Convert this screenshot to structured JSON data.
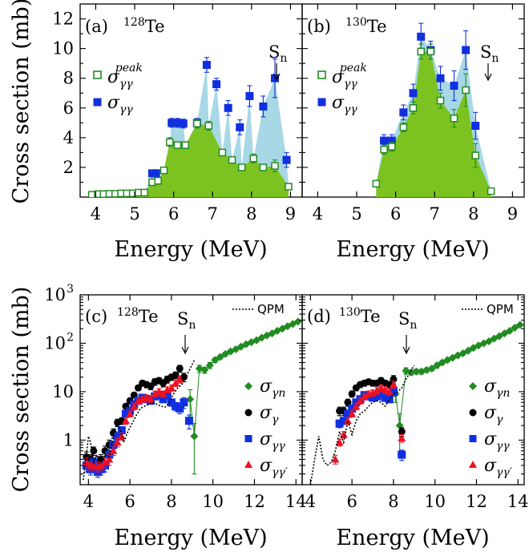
{
  "colors": {
    "blue": "#1030e0",
    "green": "#7cc322",
    "light_blue": "#a8d8e6",
    "dark_green": "#228b22",
    "black": "#000000",
    "red": "#ee1122"
  },
  "labels": {
    "ylabel_top": "Cross section (mb)",
    "xlabel_top": "Energy (MeV)",
    "ylabel_bottom": "Cross section (mb)",
    "xlabel_bottom": "Energy (MeV)",
    "panel_a": "(a)",
    "panel_b": "(b)",
    "panel_c": "(c)",
    "panel_d": "(d)",
    "iso_128_mass": "128",
    "iso_130_mass": "130",
    "iso_el": "Te",
    "sn": "S",
    "sn_sub": "n",
    "qpm": "QPM",
    "sigma": "σ",
    "sub_gg": "γγ",
    "sup_peak": "peak",
    "sub_gn": "γn",
    "sub_g": "γ",
    "sub_ggp": "γγ′"
  },
  "chart_data": [
    {
      "type": "scatter",
      "panel": "(a) 128Te",
      "xlabel": "Energy (MeV)",
      "ylabel": "Cross section (mb)",
      "xlim": [
        3.6,
        9.3
      ],
      "ylim": [
        0,
        13
      ],
      "xticks": [
        4,
        5,
        6,
        7,
        8,
        9
      ],
      "yticks": [
        2,
        4,
        6,
        8,
        10,
        12
      ],
      "sn": 8.78,
      "series": [
        {
          "name": "σγγ",
          "marker": "filled-square",
          "color": "blue",
          "x": [
            5.45,
            5.55,
            5.95,
            6.1,
            6.25,
            6.6,
            6.85,
            7.1,
            7.4,
            7.7,
            7.95,
            8.3,
            8.6,
            8.9
          ],
          "y": [
            1.6,
            1.6,
            5.0,
            5.0,
            4.95,
            5.0,
            8.9,
            7.6,
            6.0,
            4.7,
            6.8,
            6.1,
            8.0,
            2.5
          ],
          "err": [
            0.2,
            0.2,
            0.3,
            0.3,
            0.3,
            0.3,
            0.5,
            0.4,
            0.5,
            0.5,
            0.7,
            0.7,
            1.3,
            0.5
          ]
        },
        {
          "name": "σγγ peak",
          "marker": "open-square",
          "color": "dark_green",
          "x": [
            3.9,
            4.05,
            4.2,
            4.35,
            4.5,
            4.65,
            4.8,
            4.95,
            5.1,
            5.25,
            5.45,
            5.6,
            5.75,
            5.9,
            6.1,
            6.3,
            6.6,
            6.9,
            7.25,
            7.5,
            7.75,
            8.05,
            8.3,
            8.6,
            8.95
          ],
          "y": [
            0.15,
            0.2,
            0.2,
            0.22,
            0.22,
            0.25,
            0.25,
            0.25,
            0.3,
            0.3,
            1.0,
            1.1,
            1.8,
            3.7,
            3.5,
            3.5,
            4.95,
            4.8,
            3.0,
            2.5,
            2.0,
            2.6,
            2.0,
            2.1,
            0.7
          ],
          "err": [
            0.05,
            0.05,
            0.05,
            0.05,
            0.05,
            0.05,
            0.05,
            0.05,
            0.05,
            0.05,
            0.2,
            0.2,
            0.2,
            0.3,
            0.2,
            0.2,
            0.3,
            0.3,
            0.2,
            0.2,
            0.2,
            0.3,
            0.2,
            0.4,
            0.1
          ]
        }
      ]
    },
    {
      "type": "scatter",
      "panel": "(b) 130Te",
      "xlabel": "Energy (MeV)",
      "xlim": [
        3.6,
        9.3
      ],
      "ylim": [
        0,
        13
      ],
      "xticks": [
        4,
        5,
        6,
        7,
        8,
        9
      ],
      "sn": 8.45,
      "series": [
        {
          "name": "σγγ",
          "marker": "filled-square",
          "color": "blue",
          "x": [
            5.7,
            5.9,
            6.2,
            6.45,
            6.65,
            6.9,
            7.15,
            7.5,
            7.8,
            8.05
          ],
          "y": [
            3.8,
            3.8,
            5.7,
            7.0,
            10.8,
            9.9,
            8.0,
            7.5,
            9.9,
            4.8
          ],
          "err": [
            0.4,
            0.4,
            0.5,
            0.6,
            0.9,
            0.6,
            0.8,
            1.0,
            1.3,
            0.9
          ]
        },
        {
          "name": "σγγ peak",
          "marker": "open-square",
          "color": "dark_green",
          "x": [
            5.5,
            5.7,
            5.9,
            6.2,
            6.45,
            6.65,
            6.9,
            7.15,
            7.5,
            7.8,
            8.05,
            8.45
          ],
          "y": [
            0.9,
            3.2,
            3.4,
            4.7,
            6.0,
            9.8,
            9.8,
            6.5,
            5.3,
            7.2,
            2.8,
            0.4
          ],
          "err": [
            0.1,
            0.3,
            0.3,
            0.3,
            0.4,
            0.5,
            0.5,
            0.5,
            0.6,
            1.1,
            0.8,
            0.1
          ]
        }
      ]
    },
    {
      "type": "scatter",
      "panel": "(c) 128Te",
      "xlabel": "Energy (MeV)",
      "ylabel": "Cross section (mb)",
      "yscale": "log",
      "xlim": [
        3.6,
        14.3
      ],
      "ylim": [
        0.12,
        1000
      ],
      "xticks": [
        4,
        6,
        8,
        10,
        12,
        14
      ],
      "sn": 8.78,
      "series": [
        {
          "name": "σγn",
          "marker": "diamond",
          "color": "dark_green",
          "x": [
            8.9,
            9.1,
            9.35,
            9.6,
            9.85,
            10.1,
            10.35,
            10.6,
            10.85,
            11.1,
            11.35,
            11.6,
            11.85,
            12.1,
            12.35,
            12.6,
            12.85,
            13.1,
            13.35,
            13.6,
            13.85,
            14.1
          ],
          "y": [
            7.0,
            1.2,
            30,
            28,
            35,
            45,
            52,
            60,
            68,
            75,
            85,
            95,
            105,
            115,
            130,
            145,
            160,
            180,
            200,
            225,
            250,
            280
          ],
          "err": [
            4.0,
            1.0,
            5,
            4,
            5,
            5,
            5,
            5,
            6,
            6,
            6,
            6,
            7,
            7,
            8,
            8,
            9,
            10,
            10,
            11,
            12,
            13
          ]
        },
        {
          "name": "σγ",
          "marker": "circle",
          "color": "black",
          "x": [
            3.9,
            4.1,
            4.25,
            4.45,
            4.6,
            4.8,
            5.0,
            5.2,
            5.4,
            5.6,
            5.8,
            6.0,
            6.2,
            6.4,
            6.6,
            6.8,
            7.0,
            7.2,
            7.4,
            7.6,
            7.8,
            8.0,
            8.2,
            8.4,
            8.6
          ],
          "y": [
            0.45,
            0.4,
            0.6,
            0.35,
            0.4,
            0.6,
            0.8,
            1.4,
            2.3,
            2.5,
            5.0,
            6.5,
            8.5,
            12,
            15,
            14,
            13,
            16,
            17,
            15,
            18,
            20,
            22,
            30,
            20
          ],
          "err": [
            0.12,
            0.1,
            0.12,
            0.1,
            0.1,
            0.15,
            0.2,
            0.3,
            0.4,
            0.4,
            0.6,
            0.8,
            1,
            1.5,
            2,
            2,
            2,
            2.5,
            2.5,
            2.5,
            3,
            3,
            3.5,
            5,
            4
          ]
        },
        {
          "name": "σγγ",
          "marker": "filled-square",
          "color": "blue",
          "x": [
            3.9,
            4.1,
            4.25,
            4.45,
            4.6,
            4.8,
            5.0,
            5.2,
            5.4,
            5.6,
            5.8,
            6.0,
            6.2,
            6.4,
            6.6,
            6.8,
            7.0,
            7.2,
            7.4,
            7.6,
            7.8,
            8.0,
            8.2,
            8.4,
            8.6,
            8.85
          ],
          "y": [
            0.3,
            0.25,
            0.35,
            0.22,
            0.25,
            0.3,
            0.5,
            0.8,
            1.2,
            1.6,
            3.5,
            4.0,
            5.5,
            6.5,
            7.5,
            7.0,
            6.5,
            8.0,
            8.5,
            7.0,
            8.5,
            6.0,
            5.0,
            4.5,
            6.0,
            2.5
          ],
          "err": [
            0.08,
            0.06,
            0.08,
            0.05,
            0.06,
            0.08,
            0.1,
            0.15,
            0.2,
            0.25,
            0.5,
            0.5,
            0.8,
            1,
            1,
            1,
            1,
            1.2,
            1.2,
            1.1,
            1.4,
            1,
            1,
            1,
            1.5,
            0.8
          ]
        },
        {
          "name": "σγγ′",
          "marker": "triangle",
          "color": "red",
          "x": [
            3.9,
            4.1,
            4.25,
            4.45,
            4.6,
            4.8,
            5.0,
            5.2,
            5.4,
            5.6,
            5.8,
            6.0,
            6.2,
            6.4,
            6.6,
            6.8,
            7.0,
            7.2,
            7.4,
            7.6,
            7.8,
            8.0,
            8.2,
            8.4
          ],
          "y": [
            0.35,
            0.3,
            0.3,
            0.28,
            0.3,
            0.35,
            0.4,
            0.6,
            0.9,
            1.2,
            2.5,
            3.5,
            5.0,
            6.5,
            7.0,
            7.5,
            7.0,
            9.0,
            10.0,
            9.0,
            11.0,
            12.0,
            15.0,
            18.0
          ],
          "err": [
            0.08,
            0.06,
            0.06,
            0.06,
            0.06,
            0.08,
            0.1,
            0.12,
            0.18,
            0.2,
            0.4,
            0.5,
            0.8,
            1,
            1,
            1.1,
            1,
            1.3,
            1.5,
            1.3,
            1.6,
            1.8,
            2.2,
            3.0
          ]
        },
        {
          "name": "QPM",
          "style": "dotted-line",
          "color": "black",
          "x": [
            3.75,
            3.9,
            4.0,
            4.1,
            4.25,
            4.4,
            4.6,
            4.8,
            5.0,
            5.2,
            5.4,
            5.5,
            5.7,
            5.9,
            6.1,
            6.3,
            6.5,
            6.7,
            6.9,
            7.1,
            7.3,
            7.5,
            7.7,
            7.9,
            8.1,
            8.3,
            8.5,
            8.7,
            8.9,
            9.1
          ],
          "y": [
            0.15,
            0.5,
            1.2,
            0.9,
            0.35,
            0.5,
            0.35,
            0.5,
            0.45,
            1.2,
            2.5,
            1.8,
            0.9,
            1.5,
            2.2,
            3.2,
            4.5,
            5.0,
            5.5,
            6.0,
            5.5,
            5.0,
            4.8,
            6.0,
            9.0,
            12.0,
            14.0,
            20.0,
            30.0,
            45.0
          ]
        }
      ]
    },
    {
      "type": "scatter",
      "panel": "(d) 130Te",
      "xlabel": "Energy (MeV)",
      "yscale": "log",
      "xlim": [
        3.6,
        14.3
      ],
      "ylim": [
        0.12,
        1000
      ],
      "xticks": [
        4,
        6,
        8,
        10,
        12,
        14
      ],
      "sn": 8.45,
      "series": [
        {
          "name": "σγn",
          "marker": "diamond",
          "color": "dark_green",
          "x": [
            8.1,
            8.3,
            8.6,
            8.85,
            9.1,
            9.35,
            9.6,
            9.85,
            10.1,
            10.35,
            10.6,
            10.85,
            11.1,
            11.35,
            11.6,
            11.85,
            12.1,
            12.35,
            12.6,
            12.85,
            13.1,
            13.35,
            13.6,
            13.85,
            14.1
          ],
          "y": [
            9.0,
            2.0,
            27,
            25,
            26,
            26,
            28,
            30,
            35,
            40,
            45,
            50,
            56,
            62,
            70,
            80,
            90,
            100,
            110,
            125,
            140,
            160,
            180,
            210,
            240
          ],
          "err": [
            3.0,
            1.5,
            4,
            3,
            3,
            3,
            3,
            3,
            4,
            4,
            4,
            4,
            5,
            5,
            5,
            6,
            6,
            7,
            7,
            8,
            8,
            9,
            10,
            11,
            12
          ]
        },
        {
          "name": "σγ",
          "marker": "circle",
          "color": "black",
          "x": [
            5.4,
            5.6,
            5.8,
            6.0,
            6.2,
            6.4,
            6.6,
            6.8,
            7.0,
            7.2,
            7.4,
            7.6,
            7.8,
            8.0,
            8.4
          ],
          "y": [
            4.0,
            4.0,
            6.0,
            9.0,
            12.0,
            14.0,
            15.0,
            16.0,
            15.0,
            15.0,
            17.0,
            15.0,
            14.0,
            18.0,
            1.5
          ],
          "err": [
            0.8,
            0.8,
            1.0,
            1.3,
            1.6,
            1.8,
            2,
            2,
            2,
            2,
            2.5,
            2.2,
            2.2,
            3.5,
            0.3
          ]
        },
        {
          "name": "σγγ",
          "marker": "filled-square",
          "color": "blue",
          "x": [
            5.4,
            5.6,
            5.8,
            6.0,
            6.2,
            6.4,
            6.6,
            6.8,
            7.0,
            7.2,
            7.4,
            7.6,
            7.8,
            8.0,
            8.4
          ],
          "y": [
            2.2,
            2.5,
            3.5,
            4.5,
            6.0,
            7.0,
            8.5,
            8.0,
            7.5,
            8.0,
            9.0,
            7.5,
            7.0,
            10.0,
            0.5
          ],
          "err": [
            0.4,
            0.4,
            0.6,
            0.7,
            0.9,
            1,
            1.2,
            1.2,
            1.1,
            1.2,
            1.4,
            1.2,
            1.1,
            1.8,
            0.12
          ]
        },
        {
          "name": "σγγ′",
          "marker": "triangle",
          "color": "red",
          "x": [
            5.2,
            5.4,
            5.6,
            5.8,
            6.0,
            6.2,
            6.4,
            6.6,
            6.8,
            7.0,
            7.2,
            7.4,
            7.6,
            7.8,
            8.0,
            8.4
          ],
          "y": [
            0.4,
            0.9,
            1.3,
            2.5,
            3.5,
            5.0,
            6.5,
            8.0,
            9.0,
            9.5,
            10.5,
            12.0,
            11.0,
            10.0,
            14.0,
            1.1
          ],
          "err": [
            0.08,
            0.15,
            0.2,
            0.4,
            0.5,
            0.8,
            1,
            1.2,
            1.3,
            1.4,
            1.6,
            1.8,
            1.7,
            1.6,
            2.5,
            0.2
          ]
        },
        {
          "name": "QPM",
          "style": "dotted-line",
          "color": "black",
          "x": [
            4.0,
            4.2,
            4.4,
            4.6,
            4.8,
            5.0,
            5.2,
            5.4,
            5.6,
            5.8,
            6.0,
            6.2,
            6.4,
            6.6,
            6.8,
            7.0,
            7.2,
            7.4,
            7.6,
            7.8,
            8.0,
            8.2,
            8.4,
            8.6,
            8.8,
            9.0
          ],
          "y": [
            0.12,
            0.4,
            1.2,
            0.4,
            0.3,
            0.35,
            0.6,
            1.5,
            0.9,
            2.5,
            1.3,
            2.5,
            3.5,
            4.0,
            5.0,
            6.0,
            6.5,
            6.0,
            5.0,
            7.0,
            9.0,
            10.0,
            12.0,
            18.0,
            25.0,
            35.0
          ]
        }
      ]
    }
  ]
}
